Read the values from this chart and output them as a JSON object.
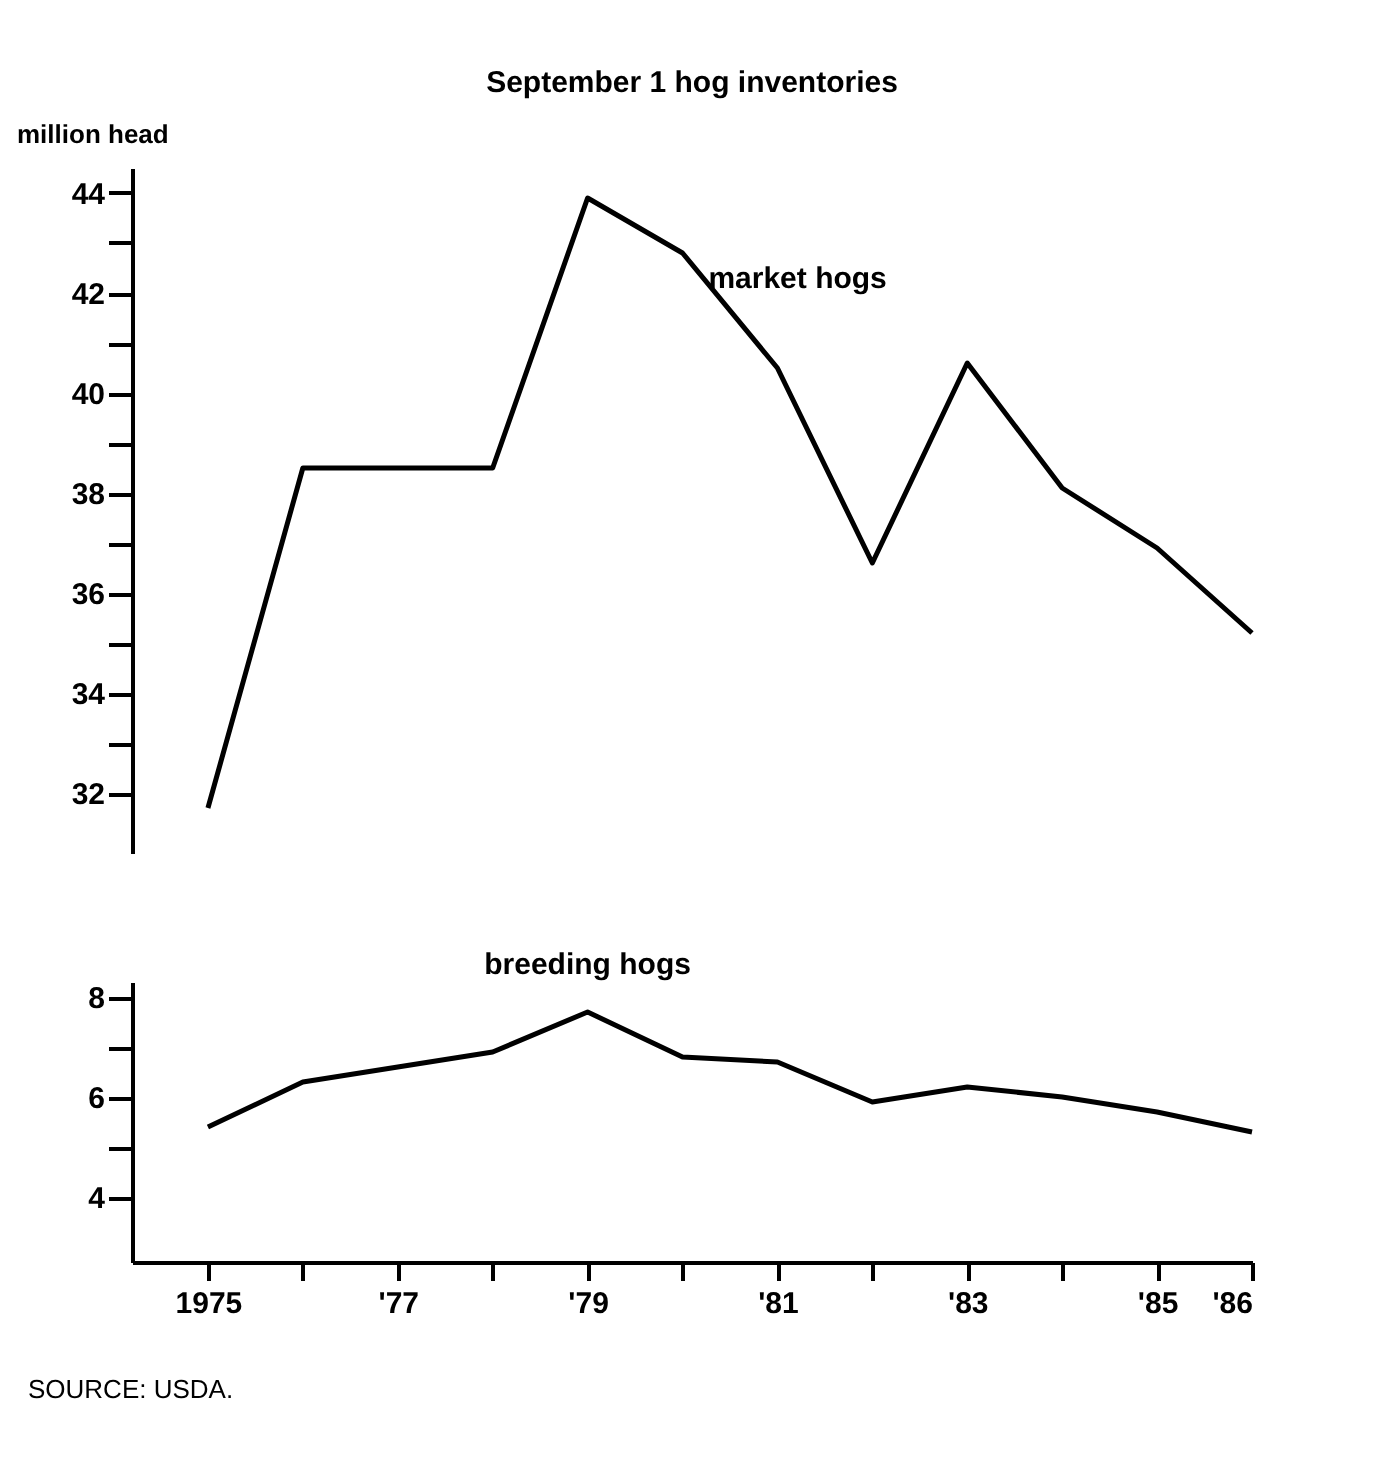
{
  "chart_data": [
    {
      "type": "line",
      "title": "September 1 hog inventories",
      "ylabel": "million head",
      "tick_labels": "y",
      "grid": false,
      "marker": "none",
      "x": [
        1975,
        1976,
        1977,
        1978,
        1979,
        1980,
        1981,
        1982,
        1983,
        1984,
        1985,
        1986
      ],
      "xlim": [
        1974.2,
        1986
      ],
      "series": [
        {
          "name": "market hogs",
          "color": "#000000",
          "values": [
            31.7,
            38.5,
            38.5,
            38.5,
            43.9,
            42.8,
            40.5,
            36.6,
            40.6,
            38.1,
            36.9,
            35.2
          ]
        }
      ],
      "ylim": [
        30.8,
        44.5
      ],
      "yticks": [
        32,
        {
          "value": 33,
          "label": null
        },
        34,
        {
          "value": 35,
          "label": null
        },
        36,
        {
          "value": 37,
          "label": null
        },
        38,
        {
          "value": 39,
          "label": null
        },
        40,
        {
          "value": 41,
          "label": null
        },
        42,
        {
          "value": 43,
          "label": null
        },
        44
      ]
    },
    {
      "type": "line",
      "grid": false,
      "marker": "none",
      "x": [
        1975,
        1976,
        1977,
        1978,
        1979,
        1980,
        1981,
        1982,
        1983,
        1984,
        1985,
        1986
      ],
      "xlim": [
        1974.2,
        1986
      ],
      "xticks": [
        {
          "value": 1975,
          "label": "1975"
        },
        {
          "value": 1976,
          "label": null
        },
        {
          "value": 1977,
          "label": "'77"
        },
        {
          "value": 1978,
          "label": null
        },
        {
          "value": 1979,
          "label": "'79"
        },
        {
          "value": 1980,
          "label": null
        },
        {
          "value": 1981,
          "label": "'81"
        },
        {
          "value": 1982,
          "label": null
        },
        {
          "value": 1983,
          "label": "'83"
        },
        {
          "value": 1984,
          "label": null
        },
        {
          "value": 1985,
          "label": "'85"
        },
        {
          "value": 1986,
          "label": "'86"
        }
      ],
      "series": [
        {
          "name": "breeding hogs",
          "color": "#000000",
          "values": [
            5.4,
            6.3,
            6.6,
            6.9,
            7.7,
            6.8,
            6.7,
            5.9,
            6.2,
            6.0,
            5.7,
            5.3
          ]
        }
      ],
      "ylim": [
        2.7,
        8.3
      ],
      "yticks": [
        4,
        {
          "value": 5,
          "label": null
        },
        6,
        {
          "value": 7,
          "label": null
        },
        8
      ],
      "annotations": [
        "SOURCE: USDA."
      ]
    }
  ]
}
